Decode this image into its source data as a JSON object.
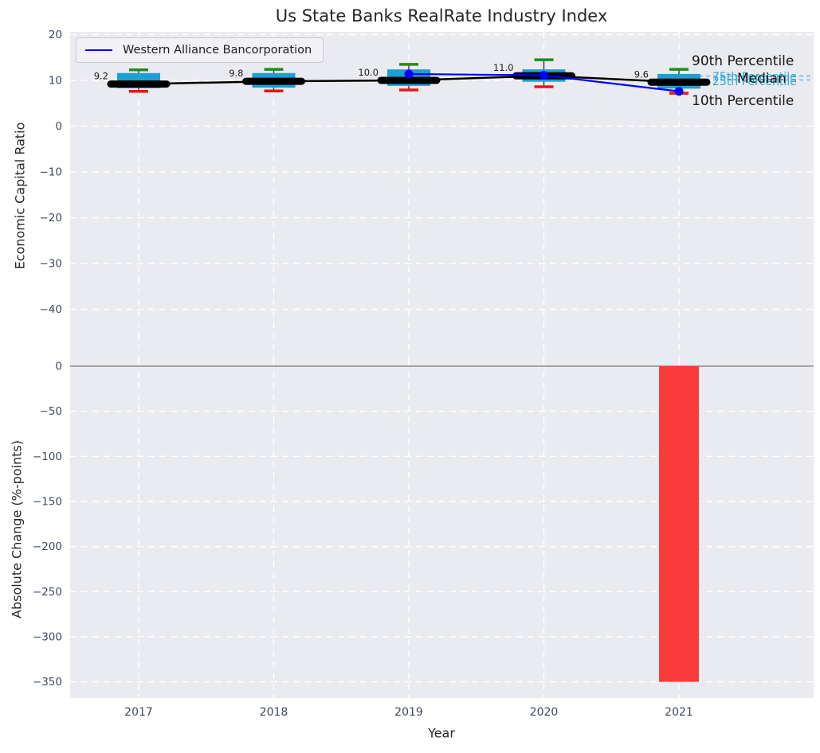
{
  "title": "Us State Banks RealRate Industry Index",
  "legend": {
    "label": "Western Alliance Bancorporation"
  },
  "colors": {
    "plot_bg": "#eaebf0",
    "grid": "#ffffff",
    "box_fill": "#1ba0d4",
    "p90_cap": "#1e8c1e",
    "p10_cap": "#ee1414",
    "whisker": "#333333",
    "median_line": "#000000",
    "company_line": "#0000ff",
    "bar_fill": "#fb3b3b",
    "tick_text": "#3d4a5c",
    "label_text": "#262626",
    "cyan_label": "#2aa7d8",
    "zero_line": "#999999"
  },
  "chart_data": [
    {
      "type": "box",
      "title": "Us State Banks RealRate Industry Index",
      "ylabel": "Economic Capital Ratio",
      "categories": [
        "2017",
        "2018",
        "2019",
        "2020",
        "2021"
      ],
      "yticks": [
        20,
        10,
        0,
        -10,
        -20,
        -30,
        -40
      ],
      "ylim": [
        -51.2,
        20.6
      ],
      "grid": true,
      "legend_position": "upper left",
      "boxes": [
        {
          "year": "2017",
          "p10": 7.6,
          "p25": 8.3,
          "median": 9.2,
          "p75": 11.6,
          "p90": 12.3,
          "median_label": "9.2"
        },
        {
          "year": "2018",
          "p10": 7.7,
          "p25": 8.4,
          "median": 9.8,
          "p75": 11.6,
          "p90": 12.4,
          "median_label": "9.8"
        },
        {
          "year": "2019",
          "p10": 7.9,
          "p25": 8.8,
          "median": 10.0,
          "p75": 12.4,
          "p90": 13.5,
          "median_label": "10.0"
        },
        {
          "year": "2020",
          "p10": 8.6,
          "p25": 9.7,
          "median": 11.0,
          "p75": 12.4,
          "p90": 14.5,
          "median_label": "11.0"
        },
        {
          "year": "2021",
          "p10": 7.2,
          "p25": 8.2,
          "median": 9.6,
          "p75": 11.4,
          "p90": 12.4,
          "median_label": "9.6"
        }
      ],
      "series": [
        {
          "name": "Western Alliance Bancorporation",
          "x": [
            "2019",
            "2020",
            "2021"
          ],
          "values": [
            11.4,
            11.1,
            7.6
          ]
        }
      ],
      "percentile_labels": {
        "p90": "90th Percentile",
        "p75": "75th Percentile",
        "median": "Median",
        "p25": "25th Percentile",
        "p10": "10th Percentile"
      }
    },
    {
      "type": "bar",
      "ylabel": "Absolute Change (%-points)",
      "xlabel": "Year",
      "categories": [
        "2017",
        "2018",
        "2019",
        "2020",
        "2021"
      ],
      "values": [
        0,
        0,
        0,
        0,
        -350
      ],
      "yticks": [
        0,
        -50,
        -100,
        -150,
        -200,
        -250,
        -300,
        -350
      ],
      "ylim": [
        -368,
        6.2
      ],
      "grid": true
    }
  ]
}
